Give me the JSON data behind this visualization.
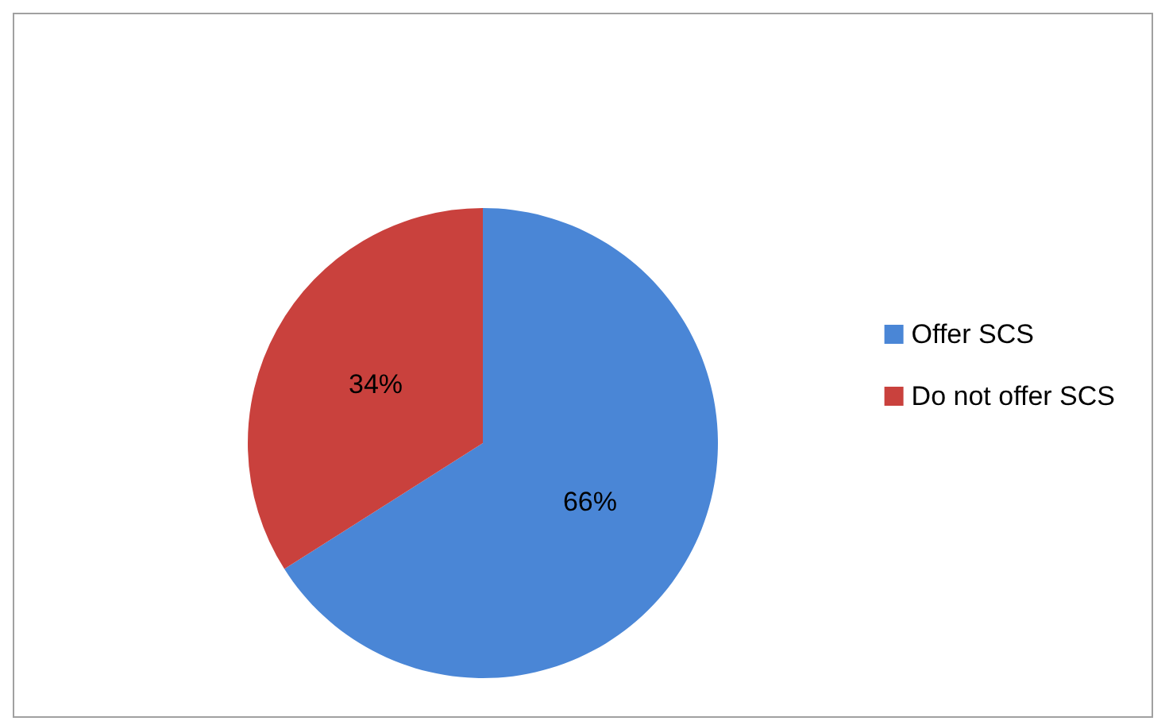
{
  "chart_data": {
    "type": "pie",
    "categories": [
      "Offer SCS",
      "Do not offer SCS"
    ],
    "values": [
      66,
      34
    ],
    "colors": [
      "#4a86d6",
      "#c9413d"
    ],
    "value_labels": [
      "66%",
      "34%"
    ],
    "legend": "right"
  }
}
